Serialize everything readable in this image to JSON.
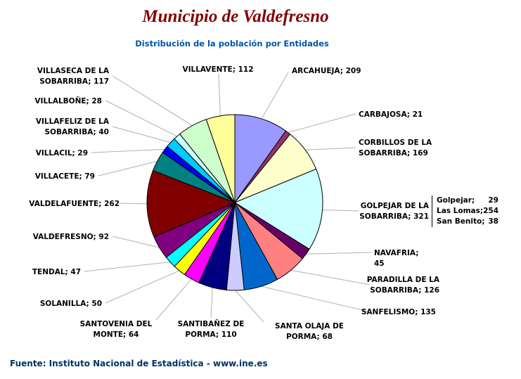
{
  "chart_data": {
    "type": "pie",
    "title": "Municipio de Valdefresno",
    "subtitle": "Distribución de la población por Entidades",
    "slices": [
      {
        "label": "ARCAHUEJA",
        "value": 209,
        "color": "#9999FF"
      },
      {
        "label": "CARBAJOSA",
        "value": 21,
        "color": "#993366"
      },
      {
        "label": "CORBILLOS DE LA SOBARRIBA",
        "value": 169,
        "color": "#FFFFCC"
      },
      {
        "label": "GOLPEJAR DE LA SOBARRIBA",
        "value": 321,
        "color": "#CCFFFF"
      },
      {
        "label": "NAVAFRIA",
        "value": 45,
        "color": "#660066"
      },
      {
        "label": "PARADILLA DE LA SOBARRIBA",
        "value": 126,
        "color": "#FF8080"
      },
      {
        "label": "SANFELISMO",
        "value": 135,
        "color": "#0066CC"
      },
      {
        "label": "SANTA OLAJA DE PORMA",
        "value": 68,
        "color": "#CCCCFF"
      },
      {
        "label": "SANTIBAÑEZ DE PORMA",
        "value": 110,
        "color": "#000080"
      },
      {
        "label": "SANTOVENIA DEL MONTE",
        "value": 64,
        "color": "#FF00FF"
      },
      {
        "label": "SOLANILLA",
        "value": 50,
        "color": "#FFFF00"
      },
      {
        "label": "TENDAL",
        "value": 47,
        "color": "#00FFFF"
      },
      {
        "label": "VALDEFRESNO",
        "value": 92,
        "color": "#800080"
      },
      {
        "label": "VALDELAFUENTE",
        "value": 262,
        "color": "#800000"
      },
      {
        "label": "VILLACETE",
        "value": 79,
        "color": "#008080"
      },
      {
        "label": "VILLACIL",
        "value": 29,
        "color": "#0000FF"
      },
      {
        "label": "VILLAFELIZ DE LA SOBARRIBA",
        "value": 40,
        "color": "#00CCFF"
      },
      {
        "label": "VILLALBOÑE",
        "value": 28,
        "color": "#CCFFFF"
      },
      {
        "label": "VILLASECA DE LA SOBARRIBA",
        "value": 117,
        "color": "#CCFFCC"
      },
      {
        "label": "VILLAVENTE",
        "value": 112,
        "color": "#FFFF99"
      }
    ],
    "data_labels": [
      "ARCAHUEJA; 209",
      "CARBAJOSA; 21",
      "CORBILLOS DE LA\nSOBARRIBA; 169",
      "GOLPEJAR DE LA\nSOBARRIBA; 321",
      "NAVAFRIA; 45",
      "PARADILLA DE LA\nSOBARRIBA; 126",
      "SANFELISMO; 135",
      "SANTA OLAJA DE\nPORMA; 68",
      "SANTIBAÑEZ DE\nPORMA; 110",
      "SANTOVENIA DEL\nMONTE; 64",
      "SOLANILLA; 50",
      "TENDAL; 47",
      "VALDEFRESNO; 92",
      "VALDELAFUENTE; 262",
      "VILLACETE; 79",
      "VILLACIL; 29",
      "VILLAFELIZ DE LA\nSOBARRIBA; 40",
      "VILLALBOÑE; 28",
      "VILLASECA DE LA\nSOBARRIBA; 117",
      "VILLAVENTE; 112"
    ],
    "annotation": [
      {
        "name": "Golpejar;",
        "value": "29"
      },
      {
        "name": "Las Lomas;",
        "value": "254"
      },
      {
        "name": "San Benito;",
        "value": "38"
      }
    ],
    "start": "top",
    "direction": "clockwise"
  },
  "source": "Fuente: Instituto Nacional de Estadística - www.ine.es"
}
